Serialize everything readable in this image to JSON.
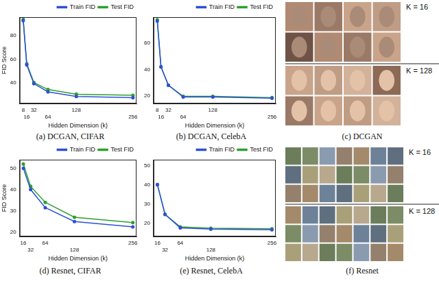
{
  "chart_data": [
    {
      "type": "line",
      "caption": "(a) DCGAN, CIFAR",
      "x_label": "Hidden Dimension (k)",
      "y_label": "FID Score",
      "x": [
        8,
        16,
        32,
        64,
        128,
        256
      ],
      "series": [
        {
          "name": "Train FID",
          "color": "#2f4fd8",
          "marker": "circle",
          "line_style": "solid",
          "values": [
            93,
            55,
            39,
            32,
            28,
            27
          ]
        },
        {
          "name": "Test FID",
          "color": "#2ca02c",
          "marker": "circle",
          "line_style": "solid",
          "values": [
            94,
            56,
            40,
            34,
            30,
            29
          ]
        }
      ],
      "xlim": [
        0,
        264
      ],
      "xticks": [
        8,
        16,
        32,
        64,
        128,
        256
      ],
      "ylim": [
        22,
        96
      ],
      "yticks": [
        40,
        60,
        80
      ],
      "grid": false,
      "legend": "upper right"
    },
    {
      "type": "line",
      "caption": "(b) DCGAN, CelebA",
      "x_label": "Hidden Dimension (k)",
      "x": [
        8,
        16,
        32,
        64,
        128,
        256
      ],
      "series": [
        {
          "name": "Train FID",
          "color": "#2f4fd8",
          "marker": "circle",
          "line_style": "solid",
          "values": [
            77,
            42,
            28,
            19,
            19,
            18
          ]
        },
        {
          "name": "Test FID",
          "color": "#2ca02c",
          "marker": "circle",
          "line_style": "solid",
          "values": [
            78,
            42,
            28,
            19.5,
            19.5,
            18.5
          ]
        }
      ],
      "xlim": [
        0,
        264
      ],
      "xticks": [
        8,
        16,
        32,
        64,
        128,
        256
      ],
      "ylim": [
        14,
        80
      ],
      "yticks": [
        20,
        40,
        60
      ],
      "grid": false,
      "legend": "upper right"
    },
    {
      "type": "line",
      "caption": "(d) Resnet, CIFAR",
      "x_label": "Hidden Dimension (k)",
      "y_label": "FID Score",
      "x": [
        16,
        32,
        64,
        128,
        256
      ],
      "series": [
        {
          "name": "Train FID",
          "color": "#2f4fd8",
          "marker": "circle",
          "line_style": "solid",
          "values": [
            50,
            40,
            31.5,
            25,
            22.5
          ]
        },
        {
          "name": "Test FID",
          "color": "#2ca02c",
          "marker": "circle",
          "line_style": "solid",
          "values": [
            52,
            41.5,
            34,
            27,
            24.5
          ]
        }
      ],
      "xlim": [
        8,
        264
      ],
      "xticks": [
        16,
        32,
        64,
        128,
        256
      ],
      "ylim": [
        18,
        54
      ],
      "yticks": [
        20,
        30,
        40,
        50
      ],
      "grid": false,
      "legend": "upper right"
    },
    {
      "type": "line",
      "caption": "(e) Resnet, CelebA",
      "x_label": "Hidden Dimension (k)",
      "x": [
        16,
        32,
        64,
        128,
        256
      ],
      "series": [
        {
          "name": "Train FID",
          "color": "#2f4fd8",
          "marker": "circle",
          "line_style": "solid",
          "values": [
            40,
            24.5,
            17.5,
            16.8,
            16.5
          ]
        },
        {
          "name": "Test FID",
          "color": "#2ca02c",
          "marker": "circle",
          "line_style": "solid",
          "values": [
            40,
            24.5,
            18,
            17.3,
            17
          ]
        }
      ],
      "xlim": [
        8,
        264
      ],
      "xticks": [
        16,
        32,
        64,
        128,
        256
      ],
      "ylim": [
        13,
        53
      ],
      "yticks": [
        20,
        30,
        40,
        50
      ],
      "grid": false,
      "legend": "upper right"
    }
  ],
  "image_panels": [
    {
      "caption": "(c) DCGAN",
      "rows": [
        "K = 16",
        "K = 128"
      ]
    },
    {
      "caption": "(f) Resnet",
      "rows": [
        "K = 16",
        "K = 128"
      ]
    }
  ]
}
